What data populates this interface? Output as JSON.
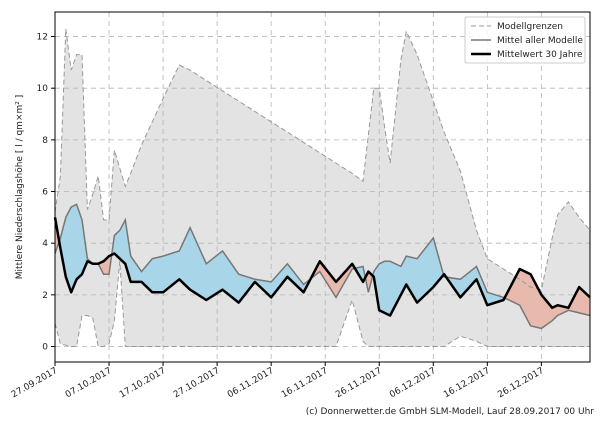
{
  "chart_data": {
    "type": "forecast-band",
    "y_label": "Mittlere Niederschlagshöhe [ l / qm×m² ]",
    "footer": "(c) Donnerwetter.de GmbH SLM-Modell, Lauf 28.09.2017 00 Uhr",
    "x": [
      0,
      1,
      2,
      3,
      4,
      5,
      6,
      7,
      8,
      9,
      10,
      11,
      12,
      13,
      14,
      16,
      18,
      20,
      23,
      25,
      28,
      31,
      34,
      37,
      40,
      43,
      46,
      49,
      52,
      55,
      57,
      58,
      59,
      60,
      61,
      62,
      64,
      65,
      67,
      70,
      72,
      75,
      78,
      80,
      83,
      86,
      88,
      90,
      92,
      93,
      95,
      97,
      99
    ],
    "xlim": [
      0,
      99
    ],
    "xticks": [
      {
        "value": 0,
        "label": "27.09.2017"
      },
      {
        "value": 10,
        "label": "07.10.2017"
      },
      {
        "value": 20,
        "label": "17.10.2017"
      },
      {
        "value": 30,
        "label": "27.10.2017"
      },
      {
        "value": 40,
        "label": "06.11.2017"
      },
      {
        "value": 50,
        "label": "16.11.2017"
      },
      {
        "value": 60,
        "label": "26.11.2017"
      },
      {
        "value": 70,
        "label": "06.12.2017"
      },
      {
        "value": 80,
        "label": "16.12.2017"
      },
      {
        "value": 90,
        "label": "26.12.2017"
      }
    ],
    "ylim": [
      -0.6,
      12.95
    ],
    "yticks": [
      0,
      2,
      4,
      6,
      8,
      10,
      12
    ],
    "grid": true,
    "legend": "upper right",
    "above_color": "#a9d5e8",
    "below_color": "#e8baad",
    "series": [
      {
        "name": "Modellgrenzen",
        "color": "#999999",
        "band_color": "#e3e3e3",
        "upper": [
          5.2,
          6.6,
          12.3,
          10.7,
          11.3,
          11.3,
          5.3,
          5.9,
          6.6,
          4.9,
          4.9,
          7.6,
          6.9,
          6.2,
          6.7,
          7.8,
          8.7,
          9.6,
          10.9,
          10.7,
          10.3,
          9.9,
          9.5,
          9.1,
          8.7,
          8.3,
          7.9,
          7.5,
          7.1,
          6.7,
          6.4,
          8.2,
          10.0,
          10.0,
          8.5,
          7.1,
          11.1,
          12.2,
          11.3,
          9.5,
          8.3,
          6.8,
          4.5,
          3.4,
          3.0,
          2.6,
          2.3,
          2.2,
          4.2,
          5.1,
          5.6,
          5.0,
          4.5
        ],
        "lower": [
          0.9,
          0.1,
          0.05,
          0,
          0,
          1.2,
          1.2,
          1.1,
          0,
          0,
          0.1,
          1.0,
          3.3,
          0,
          0,
          0,
          0,
          0,
          0,
          0,
          0,
          0,
          0,
          0,
          0,
          0,
          0,
          0,
          0,
          1.8,
          0.2,
          0,
          0,
          0,
          0,
          0,
          0,
          0,
          0,
          0,
          0,
          0.4,
          0.2,
          0,
          0,
          0,
          0,
          0,
          0,
          0,
          0,
          0,
          0
        ]
      },
      {
        "name": "Mittel aller Modelle",
        "color": "#777777",
        "values": [
          3.6,
          4.2,
          5.0,
          5.4,
          5.5,
          4.9,
          3.4,
          3.2,
          3.2,
          2.8,
          2.8,
          4.3,
          4.5,
          4.9,
          3.5,
          2.9,
          3.4,
          3.5,
          3.7,
          4.6,
          3.2,
          3.7,
          2.8,
          2.6,
          2.5,
          3.2,
          2.4,
          2.9,
          1.9,
          3.0,
          3.1,
          2.1,
          2.9,
          3.2,
          3.3,
          3.3,
          3.1,
          3.5,
          3.4,
          4.2,
          2.7,
          2.6,
          3.1,
          2.1,
          1.9,
          1.6,
          0.8,
          0.7,
          1.0,
          1.2,
          1.4,
          1.3,
          1.2
        ]
      },
      {
        "name": "Mittelwert 30 Jahre",
        "color": "#000000",
        "values": [
          5.0,
          3.8,
          2.7,
          2.1,
          2.6,
          2.8,
          3.3,
          3.2,
          3.2,
          3.3,
          3.5,
          3.6,
          3.4,
          3.2,
          2.5,
          2.5,
          2.1,
          2.1,
          2.6,
          2.2,
          1.8,
          2.2,
          1.7,
          2.5,
          1.9,
          2.7,
          2.1,
          3.3,
          2.5,
          3.2,
          2.5,
          2.9,
          2.7,
          1.4,
          1.3,
          1.2,
          2.0,
          2.4,
          1.7,
          2.3,
          2.8,
          1.9,
          2.6,
          1.6,
          1.8,
          3.0,
          2.8,
          2.0,
          1.5,
          1.6,
          1.5,
          2.3,
          1.9
        ]
      }
    ]
  }
}
